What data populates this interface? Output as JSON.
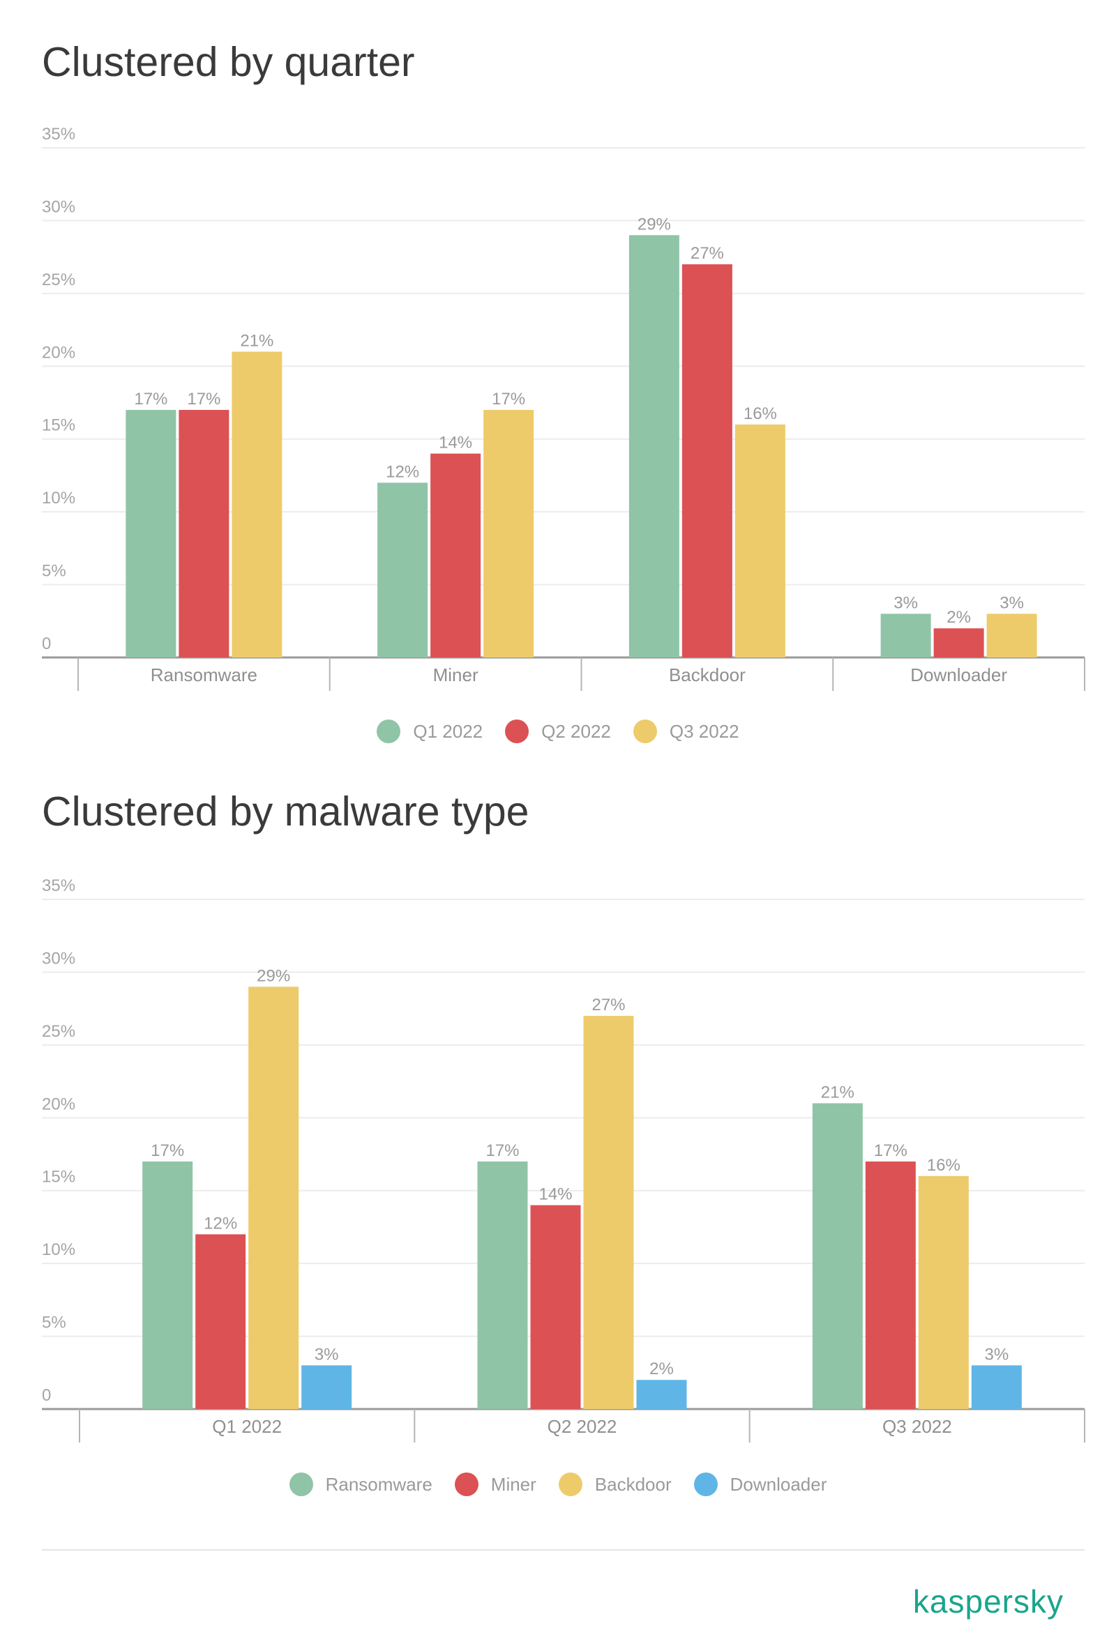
{
  "chart_data": [
    {
      "type": "bar",
      "title": "Clustered by quarter",
      "categories": [
        "Ransomware",
        "Miner",
        "Backdoor",
        "Downloader"
      ],
      "series": [
        {
          "name": "Q1 2022",
          "color": "#8fc4a7",
          "values": [
            17,
            12,
            29,
            3
          ]
        },
        {
          "name": "Q2 2022",
          "color": "#dc5153",
          "values": [
            17,
            14,
            27,
            2
          ]
        },
        {
          "name": "Q3 2022",
          "color": "#eecb6a",
          "values": [
            21,
            17,
            16,
            3
          ]
        }
      ],
      "y_ticks": [
        "0",
        "5%",
        "10%",
        "15%",
        "20%",
        "25%",
        "30%",
        "35%"
      ],
      "ylim": [
        0,
        35
      ],
      "value_suffix": "%",
      "grid": true,
      "legend_position": "bottom"
    },
    {
      "type": "bar",
      "title": "Clustered by malware type",
      "categories": [
        "Q1 2022",
        "Q2 2022",
        "Q3 2022"
      ],
      "series": [
        {
          "name": "Ransomware",
          "color": "#8fc4a7",
          "values": [
            17,
            17,
            21
          ]
        },
        {
          "name": "Miner",
          "color": "#dc5153",
          "values": [
            12,
            14,
            17
          ]
        },
        {
          "name": "Backdoor",
          "color": "#eecb6a",
          "values": [
            29,
            27,
            16
          ]
        },
        {
          "name": "Downloader",
          "color": "#5fb6e6",
          "values": [
            3,
            2,
            3
          ]
        }
      ],
      "y_ticks": [
        "0",
        "5%",
        "10%",
        "15%",
        "20%",
        "25%",
        "30%",
        "35%"
      ],
      "ylim": [
        0,
        35
      ],
      "value_suffix": "%",
      "grid": true,
      "legend_position": "bottom"
    }
  ],
  "brand": "kaspersky"
}
